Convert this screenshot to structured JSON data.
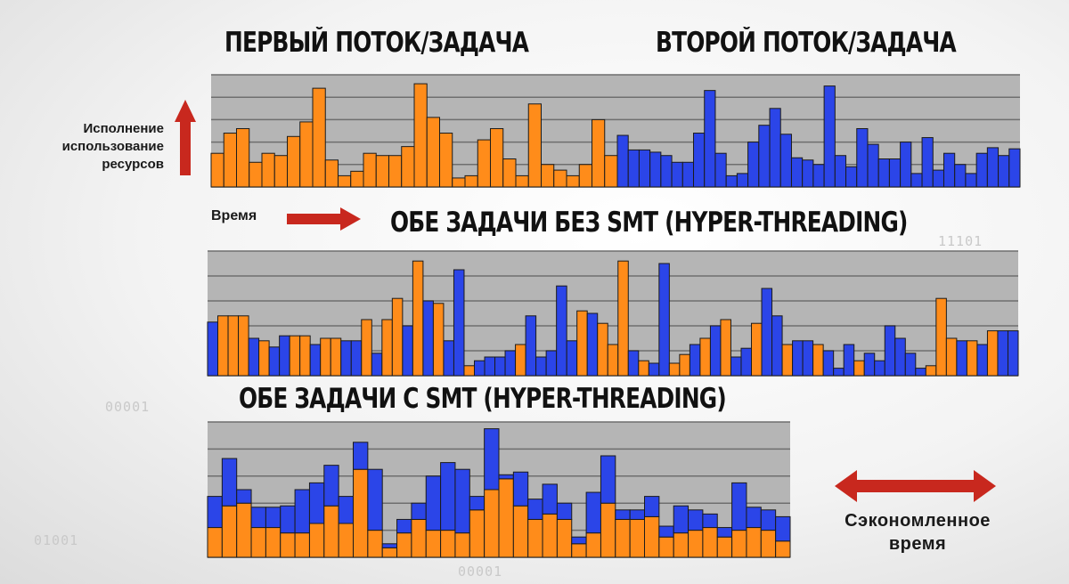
{
  "titles": {
    "first_task": "ПЕРВЫЙ ПОТОК/ЗАДАЧА",
    "second_task": "ВТОРОЙ ПОТОК/ЗАДАЧА",
    "no_smt": "ОБЕ ЗАДАЧИ БЕЗ SMT (HYPER-THREADING)",
    "with_smt": "ОБЕ ЗАДАЧИ С SMT (HYPER-THREADING)"
  },
  "labels": {
    "y_axis": [
      "Исполнение",
      "использование",
      "ресурсов"
    ],
    "time": "Время",
    "saved_time": [
      "Сэкономленное",
      "время"
    ]
  },
  "background_codes": [
    "11101",
    "00001",
    "01001",
    "00001"
  ],
  "colors": {
    "task1": "#ff8c1a",
    "task2": "#2b45e8",
    "plot_bg": "#b5b5b5",
    "arrow": "#c8281e"
  },
  "chart_data": [
    {
      "type": "bar",
      "title": "ПЕРВЫЙ ПОТОК/ЗАДАЧА + ВТОРОЙ ПОТОК/ЗАДАЧА",
      "ylim": [
        0,
        100
      ],
      "series": [
        {
          "name": "ПЕРВЫЙ ПОТОК/ЗАДАЧА",
          "color": "task1",
          "values": [
            30,
            48,
            52,
            22,
            30,
            28,
            45,
            58,
            88,
            24,
            10,
            14,
            30,
            28,
            28,
            36,
            92,
            62,
            48,
            8,
            10,
            42,
            52,
            25,
            10,
            74,
            20,
            15,
            10,
            20,
            60,
            28
          ]
        },
        {
          "name": "ВТОРОЙ ПОТОК/ЗАДАЧА",
          "color": "task2",
          "values": [
            46,
            33,
            33,
            31,
            28,
            22,
            22,
            48,
            86,
            30,
            10,
            12,
            40,
            55,
            70,
            47,
            26,
            24,
            20,
            90,
            28,
            18,
            52,
            38,
            25,
            25,
            40,
            12,
            44,
            15,
            30,
            20,
            12,
            30,
            35,
            28,
            34
          ]
        }
      ]
    },
    {
      "type": "bar",
      "title": "ОБЕ ЗАДАЧИ БЕЗ SMT (HYPER-THREADING)",
      "ylim": [
        0,
        100
      ],
      "bars": [
        {
          "s": "task2",
          "v": 43
        },
        {
          "s": "task1",
          "v": 48
        },
        {
          "s": "task1",
          "v": 48
        },
        {
          "s": "task1",
          "v": 48
        },
        {
          "s": "task2",
          "v": 30
        },
        {
          "s": "task1",
          "v": 28
        },
        {
          "s": "task2",
          "v": 23
        },
        {
          "s": "task2",
          "v": 32
        },
        {
          "s": "task1",
          "v": 32
        },
        {
          "s": "task1",
          "v": 32
        },
        {
          "s": "task2",
          "v": 25
        },
        {
          "s": "task1",
          "v": 30
        },
        {
          "s": "task1",
          "v": 30
        },
        {
          "s": "task2",
          "v": 28
        },
        {
          "s": "task2",
          "v": 28
        },
        {
          "s": "task1",
          "v": 45
        },
        {
          "s": "task2",
          "v": 18
        },
        {
          "s": "task1",
          "v": 45
        },
        {
          "s": "task1",
          "v": 62
        },
        {
          "s": "task2",
          "v": 40
        },
        {
          "s": "task1",
          "v": 92
        },
        {
          "s": "task2",
          "v": 60
        },
        {
          "s": "task1",
          "v": 58
        },
        {
          "s": "task2",
          "v": 28
        },
        {
          "s": "task2",
          "v": 85
        },
        {
          "s": "task1",
          "v": 8
        },
        {
          "s": "task2",
          "v": 12
        },
        {
          "s": "task2",
          "v": 15
        },
        {
          "s": "task2",
          "v": 15
        },
        {
          "s": "task2",
          "v": 20
        },
        {
          "s": "task1",
          "v": 25
        },
        {
          "s": "task2",
          "v": 48
        },
        {
          "s": "task2",
          "v": 15
        },
        {
          "s": "task2",
          "v": 20
        },
        {
          "s": "task2",
          "v": 72
        },
        {
          "s": "task2",
          "v": 28
        },
        {
          "s": "task1",
          "v": 52
        },
        {
          "s": "task2",
          "v": 50
        },
        {
          "s": "task1",
          "v": 42
        },
        {
          "s": "task1",
          "v": 25
        },
        {
          "s": "task1",
          "v": 92
        },
        {
          "s": "task2",
          "v": 20
        },
        {
          "s": "task1",
          "v": 12
        },
        {
          "s": "task2",
          "v": 10
        },
        {
          "s": "task2",
          "v": 90
        },
        {
          "s": "task1",
          "v": 10
        },
        {
          "s": "task1",
          "v": 17
        },
        {
          "s": "task2",
          "v": 25
        },
        {
          "s": "task1",
          "v": 30
        },
        {
          "s": "task2",
          "v": 40
        },
        {
          "s": "task1",
          "v": 45
        },
        {
          "s": "task2",
          "v": 15
        },
        {
          "s": "task2",
          "v": 22
        },
        {
          "s": "task1",
          "v": 42
        },
        {
          "s": "task2",
          "v": 70
        },
        {
          "s": "task2",
          "v": 48
        },
        {
          "s": "task1",
          "v": 25
        },
        {
          "s": "task2",
          "v": 28
        },
        {
          "s": "task2",
          "v": 28
        },
        {
          "s": "task1",
          "v": 25
        },
        {
          "s": "task2",
          "v": 20
        },
        {
          "s": "task2",
          "v": 6
        },
        {
          "s": "task2",
          "v": 25
        },
        {
          "s": "task1",
          "v": 12
        },
        {
          "s": "task2",
          "v": 18
        },
        {
          "s": "task2",
          "v": 12
        },
        {
          "s": "task2",
          "v": 40
        },
        {
          "s": "task2",
          "v": 30
        },
        {
          "s": "task2",
          "v": 18
        },
        {
          "s": "task2",
          "v": 6
        },
        {
          "s": "task1",
          "v": 8
        },
        {
          "s": "task1",
          "v": 62
        },
        {
          "s": "task1",
          "v": 30
        },
        {
          "s": "task2",
          "v": 28
        },
        {
          "s": "task1",
          "v": 28
        },
        {
          "s": "task2",
          "v": 25
        },
        {
          "s": "task1",
          "v": 36
        },
        {
          "s": "task2",
          "v": 36
        },
        {
          "s": "task2",
          "v": 36
        }
      ]
    },
    {
      "type": "bar",
      "stacked": true,
      "title": "ОБЕ ЗАДАЧИ С SMT (HYPER-THREADING)",
      "ylim": [
        0,
        100
      ],
      "series": [
        {
          "name": "task1",
          "color": "task1",
          "values": [
            22,
            38,
            40,
            22,
            22,
            18,
            18,
            25,
            38,
            25,
            65,
            20,
            7,
            18,
            28,
            20,
            20,
            18,
            35,
            50,
            58,
            38,
            28,
            32,
            28,
            10,
            18,
            40,
            28,
            28,
            30,
            15,
            18,
            20,
            22,
            15,
            20,
            22,
            20,
            12
          ]
        },
        {
          "name": "task2",
          "color": "task2",
          "values": [
            23,
            35,
            10,
            15,
            15,
            20,
            32,
            30,
            30,
            20,
            20,
            45,
            3,
            10,
            12,
            40,
            50,
            47,
            10,
            45,
            3,
            25,
            15,
            22,
            12,
            5,
            30,
            35,
            7,
            7,
            15,
            8,
            20,
            15,
            10,
            7,
            35,
            15,
            15,
            18
          ]
        }
      ]
    }
  ]
}
